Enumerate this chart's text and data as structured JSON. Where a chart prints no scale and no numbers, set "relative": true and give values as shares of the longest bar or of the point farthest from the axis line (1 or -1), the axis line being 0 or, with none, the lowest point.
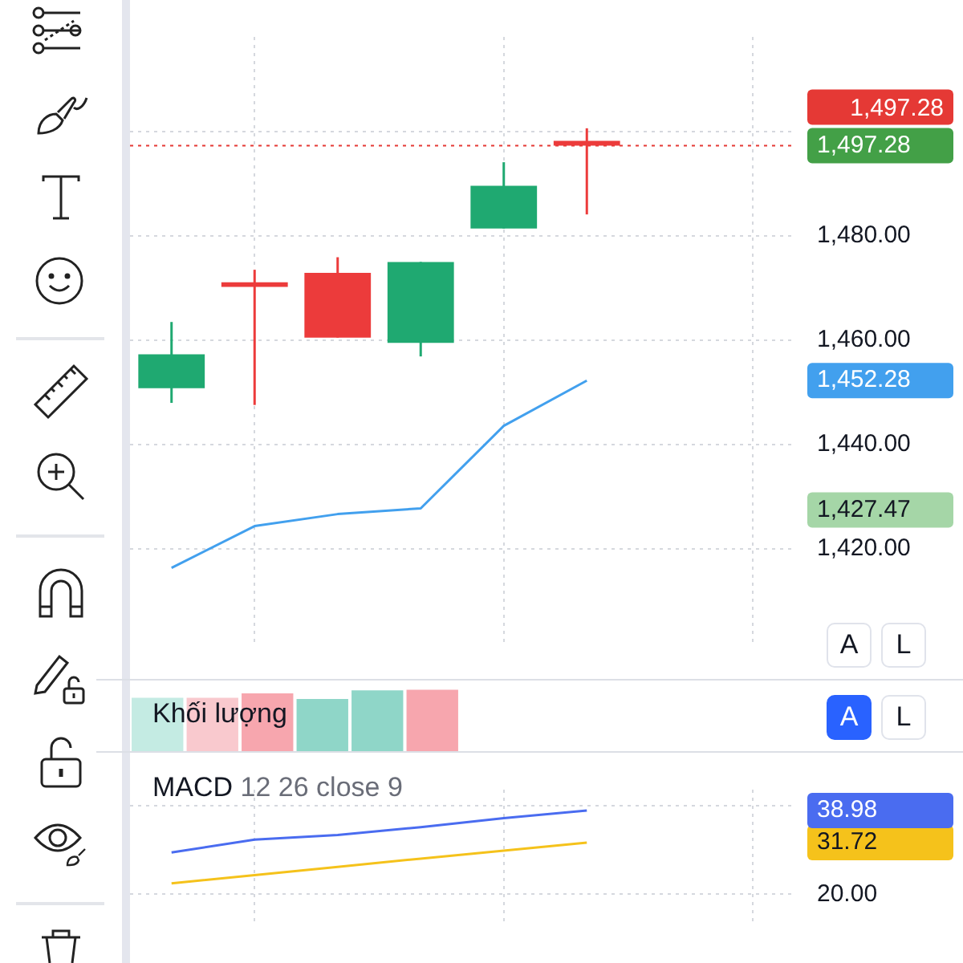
{
  "chart_data": [
    {
      "type": "candlestick",
      "categories": [
        null,
        null,
        null,
        null,
        null,
        null,
        null,
        null
      ],
      "ohlc": [
        [
          1450.8,
          1463.5,
          1448.0,
          1457.3
        ],
        [
          1471.1,
          1473.5,
          1447.6,
          1470.2
        ],
        [
          1472.9,
          1475.9,
          1460.5,
          1460.5
        ],
        [
          1459.5,
          1475.0,
          1456.9,
          1475.0
        ],
        [
          1481.4,
          1494.1,
          1481.4,
          1489.6
        ],
        [
          1498.2,
          1500.6,
          1484.1,
          1497.28
        ],
        null,
        null
      ],
      "colors": [
        "#1fa971",
        "#ec3b3b",
        "#ec3b3b",
        "#1fa971",
        "#1fa971",
        "#ec3b3b",
        null,
        null
      ],
      "series": [
        {
          "type": "line",
          "color": "#42a0ee",
          "values": [
            1416.4,
            1424.4,
            1426.7,
            1427.8,
            1443.6,
            1452.28,
            null,
            null
          ]
        }
      ],
      "ylim": [
        1402.2,
        1518.1
      ],
      "yticks": [
        {
          "value": 1420,
          "label": "1,420.00"
        },
        {
          "value": 1427.47,
          "label": "1,427.47"
        },
        {
          "value": 1440,
          "label": "1,440.00"
        },
        {
          "value": 1452.28,
          "label": "1,452.28"
        },
        {
          "value": 1460,
          "label": "1,460.00"
        },
        {
          "value": 1480,
          "label": "1,480.00"
        },
        {
          "value": 1497.28,
          "label": "1,497.28"
        },
        {
          "value": 1500,
          "label": null
        }
      ],
      "grid": true,
      "ref_lines": [
        {
          "axis": "y",
          "value": 1497.28,
          "label": "1,497.28",
          "color": "#e53935",
          "line_style": "dotted"
        }
      ],
      "annotations": [
        "A",
        "L"
      ]
    },
    {
      "type": "bar",
      "title": "Khối lượng",
      "relative": true,
      "categories": [
        null,
        null,
        null,
        null,
        null,
        null
      ],
      "values": [
        0.87,
        0.87,
        0.94,
        0.85,
        0.99,
        1
      ],
      "colors": [
        "#c4ebe3",
        "#f9c9ce",
        "#f7a6ae",
        "#8fd6c8",
        "#8fd6c8",
        "#f7a6ae"
      ],
      "annotations": [
        "A",
        "L"
      ]
    },
    {
      "type": "line",
      "title": "MACD",
      "subtitle": "12 26 close 9",
      "categories": [
        null,
        null,
        null,
        null,
        null,
        null,
        null,
        null
      ],
      "series": [
        {
          "color": "#4a6cf0",
          "values": [
            29.47,
            32.39,
            33.45,
            35.2,
            37.25,
            38.98,
            null,
            null
          ]
        },
        {
          "color": "#f5c21b",
          "values": [
            22.5,
            24.36,
            26.2,
            28.08,
            29.9,
            31.72,
            null,
            null
          ]
        }
      ],
      "ylim": [
        12.8,
        43.7
      ],
      "yticks": [
        {
          "value": 20,
          "label": "20.00"
        },
        {
          "value": 31.72,
          "label": "31.72"
        },
        {
          "value": 38.98,
          "label": "38.98"
        },
        {
          "value": 40,
          "label": null
        }
      ],
      "grid": true
    }
  ]
}
